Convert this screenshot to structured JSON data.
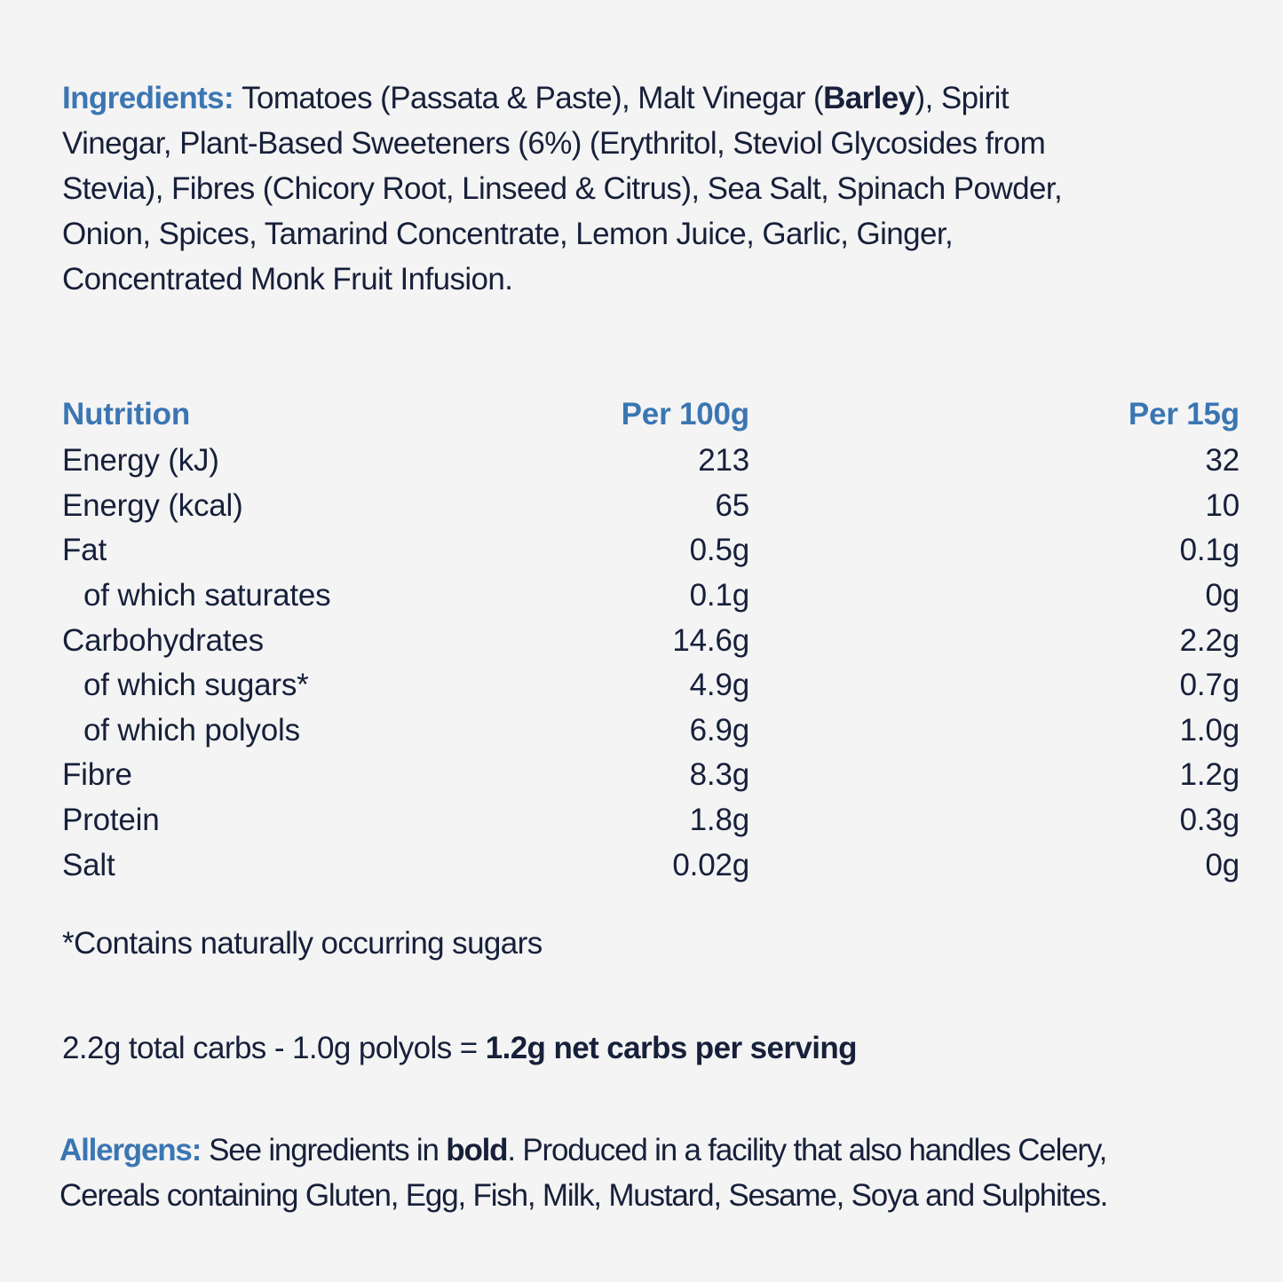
{
  "ingredients": {
    "label": "Ingredients:",
    "lines": [
      [
        "Tomatoes (Passata & Paste), Malt Vinegar (",
        "Barley",
        "), Spirit"
      ],
      "Vinegar, Plant-Based Sweeteners (6%) (Erythritol, Steviol Glycosides from",
      "Stevia), Fibres (Chicory Root, Linseed & Citrus), Sea Salt, Spinach Powder,",
      "Onion, Spices, Tamarind Concentrate, Lemon Juice, Garlic, Ginger,",
      "Concentrated Monk Fruit Infusion."
    ]
  },
  "nutrition": {
    "headers": [
      "Nutrition",
      "Per 100g",
      "Per 15g"
    ],
    "rows": [
      [
        "Energy (kJ)",
        "213",
        "32"
      ],
      [
        "Energy (kcal)",
        "65",
        "10"
      ],
      [
        "Fat",
        "0.5g",
        "0.1g"
      ],
      [
        "of which saturates",
        "0.1g",
        "0g"
      ],
      [
        "Carbohydrates",
        "14.6g",
        "2.2g"
      ],
      [
        "of which sugars*",
        "4.9g",
        "0.7g"
      ],
      [
        "of which polyols",
        "6.9g",
        "1.0g"
      ],
      [
        "Fibre",
        "8.3g",
        "1.2g"
      ],
      [
        "Protein",
        "1.8g",
        "0.3g"
      ],
      [
        "Salt",
        "0.02g",
        "0g"
      ]
    ]
  },
  "footnote": "*Contains naturally occurring sugars",
  "net_carbs": {
    "text": "2.2g total carbs - 1.0g polyols = ",
    "bold": "1.2g net carbs per serving"
  },
  "allergens": {
    "label": "Allergens:",
    "lines": [
      [
        "See ingredients in ",
        "bold",
        ". Produced in a facility that also handles Celery,"
      ],
      "Cereals containing Gluten, Egg, Fish, Milk, Mustard, Sesame, Soya and Sulphites."
    ]
  }
}
